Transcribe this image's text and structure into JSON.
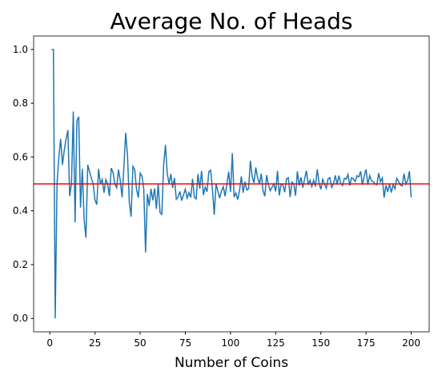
{
  "chart_data": {
    "type": "line",
    "title": "Average No. of Heads",
    "xlabel": "Number of Coins",
    "x": [
      1,
      2,
      3,
      4,
      5,
      6,
      7,
      8,
      9,
      10,
      11,
      12,
      13,
      14,
      15,
      16,
      17,
      18,
      19,
      20,
      21,
      22,
      23,
      24,
      25,
      26,
      27,
      28,
      29,
      30,
      31,
      32,
      33,
      34,
      35,
      36,
      37,
      38,
      39,
      40,
      41,
      42,
      43,
      44,
      45,
      46,
      47,
      48,
      49,
      50,
      51,
      52,
      53,
      54,
      55,
      56,
      57,
      58,
      59,
      60,
      61,
      62,
      63,
      64,
      65,
      66,
      67,
      68,
      69,
      70,
      71,
      72,
      73,
      74,
      75,
      76,
      77,
      78,
      79,
      80,
      81,
      82,
      83,
      84,
      85,
      86,
      87,
      88,
      89,
      90,
      91,
      92,
      93,
      94,
      95,
      96,
      97,
      98,
      99,
      100,
      101,
      102,
      103,
      104,
      105,
      106,
      107,
      108,
      109,
      110,
      111,
      112,
      113,
      114,
      115,
      116,
      117,
      118,
      119,
      120,
      121,
      122,
      123,
      124,
      125,
      126,
      127,
      128,
      129,
      130,
      131,
      132,
      133,
      134,
      135,
      136,
      137,
      138,
      139,
      140,
      141,
      142,
      143,
      144,
      145,
      146,
      147,
      148,
      149,
      150,
      151,
      152,
      153,
      154,
      155,
      156,
      157,
      158,
      159,
      160,
      161,
      162,
      163,
      164,
      165,
      166,
      167,
      168,
      169,
      170,
      171,
      172,
      173,
      174,
      175,
      176,
      177,
      178,
      179,
      180,
      181,
      182,
      183,
      184,
      185,
      186,
      187,
      188,
      189,
      190,
      191,
      192,
      193,
      194,
      195,
      196,
      197,
      198,
      199,
      200
    ],
    "series": [
      {
        "color": "#1f77b4",
        "values": [
          1.0,
          1.0,
          0.0,
          0.5,
          0.6,
          0.667,
          0.571,
          0.625,
          0.667,
          0.7,
          0.455,
          0.5,
          0.769,
          0.357,
          0.733,
          0.75,
          0.412,
          0.556,
          0.368,
          0.3,
          0.571,
          0.545,
          0.522,
          0.5,
          0.44,
          0.423,
          0.556,
          0.5,
          0.517,
          0.467,
          0.516,
          0.5,
          0.455,
          0.559,
          0.543,
          0.5,
          0.486,
          0.553,
          0.513,
          0.45,
          0.561,
          0.69,
          0.605,
          0.432,
          0.378,
          0.565,
          0.553,
          0.479,
          0.449,
          0.54,
          0.529,
          0.481,
          0.245,
          0.463,
          0.418,
          0.482,
          0.439,
          0.483,
          0.407,
          0.5,
          0.393,
          0.387,
          0.571,
          0.645,
          0.538,
          0.5,
          0.537,
          0.485,
          0.522,
          0.443,
          0.451,
          0.472,
          0.438,
          0.459,
          0.48,
          0.447,
          0.468,
          0.449,
          0.519,
          0.45,
          0.444,
          0.537,
          0.482,
          0.548,
          0.459,
          0.488,
          0.471,
          0.545,
          0.551,
          0.48,
          0.385,
          0.5,
          0.473,
          0.447,
          0.474,
          0.49,
          0.454,
          0.5,
          0.545,
          0.47,
          0.614,
          0.451,
          0.466,
          0.442,
          0.476,
          0.528,
          0.467,
          0.509,
          0.477,
          0.482,
          0.586,
          0.527,
          0.504,
          0.561,
          0.522,
          0.5,
          0.538,
          0.475,
          0.454,
          0.533,
          0.496,
          0.475,
          0.488,
          0.5,
          0.472,
          0.548,
          0.457,
          0.5,
          0.496,
          0.469,
          0.519,
          0.523,
          0.451,
          0.507,
          0.5,
          0.456,
          0.547,
          0.493,
          0.525,
          0.486,
          0.518,
          0.549,
          0.497,
          0.514,
          0.49,
          0.514,
          0.49,
          0.554,
          0.503,
          0.48,
          0.517,
          0.5,
          0.484,
          0.519,
          0.523,
          0.487,
          0.5,
          0.532,
          0.497,
          0.531,
          0.503,
          0.494,
          0.521,
          0.518,
          0.535,
          0.494,
          0.523,
          0.518,
          0.509,
          0.53,
          0.526,
          0.547,
          0.497,
          0.529,
          0.554,
          0.497,
          0.531,
          0.512,
          0.508,
          0.5,
          0.497,
          0.54,
          0.508,
          0.522,
          0.449,
          0.495,
          0.47,
          0.5,
          0.468,
          0.497,
          0.482,
          0.521,
          0.509,
          0.496,
          0.492,
          0.538,
          0.5,
          0.512,
          0.547,
          0.45
        ]
      }
    ],
    "hline": {
      "value": 0.5,
      "color": "red"
    },
    "xlim": [
      -8.95,
      209.95
    ],
    "xticks": [
      0,
      25,
      50,
      75,
      100,
      125,
      150,
      175,
      200
    ],
    "ylim": [
      -0.05,
      1.05
    ],
    "yticks": [
      {
        "value": 0,
        "label": "0.0"
      },
      0.2,
      0.4,
      0.6,
      0.8,
      {
        "value": 1,
        "label": "1.0"
      }
    ]
  }
}
